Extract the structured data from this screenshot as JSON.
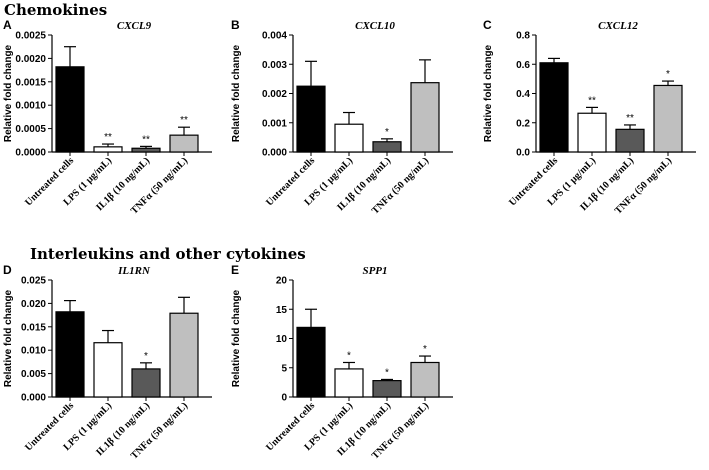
{
  "sections": {
    "chemokines": "Chemokines",
    "interleukins": "Interleukins and other cytokines"
  },
  "colors": {
    "black": "#000000",
    "white": "#ffffff",
    "dark_gray": "#595959",
    "light_gray": "#bfbfbf"
  },
  "chart_data": [
    {
      "type": "bar",
      "panel": "A",
      "title": "CXCL9",
      "ylabel": "Relative fold change",
      "categories": [
        "Untreated cells",
        "LPS (1 μg/mL)",
        "IL1β (10 ng/mL)",
        "TNFα (50 ng/mL)"
      ],
      "values": [
        0.00182,
        0.00011,
        8e-05,
        0.00036
      ],
      "errors": [
        0.00043,
        6e-05,
        4e-05,
        0.00017
      ],
      "significance": [
        "",
        "**",
        "**",
        "**"
      ],
      "fills": [
        "black",
        "white",
        "dark_gray",
        "light_gray"
      ],
      "ylim": [
        0,
        0.0025
      ],
      "yticks": [
        "0.0000",
        "0.0005",
        "0.0010",
        "0.0015",
        "0.0020",
        "0.0025"
      ]
    },
    {
      "type": "bar",
      "panel": "B",
      "title": "CXCL10",
      "ylabel": "Relative fold change",
      "categories": [
        "Untreated cells",
        "LPS (1 μg/mL)",
        "IL1β (10 ng/mL)",
        "TNFα (50 ng/mL)"
      ],
      "values": [
        0.00225,
        0.00095,
        0.00035,
        0.00237
      ],
      "errors": [
        0.00085,
        0.0004,
        0.0001,
        0.00078
      ],
      "significance": [
        "",
        "",
        "*",
        ""
      ],
      "fills": [
        "black",
        "white",
        "dark_gray",
        "light_gray"
      ],
      "ylim": [
        0,
        0.004
      ],
      "yticks": [
        "0.000",
        "0.001",
        "0.002",
        "0.003",
        "0.004"
      ]
    },
    {
      "type": "bar",
      "panel": "C",
      "title": "CXCL12",
      "ylabel": "Relative fold change",
      "categories": [
        "Untreated cells",
        "LPS (1 μg/mL)",
        "IL1β (10 ng/mL)",
        "TNFα (50 ng/mL)"
      ],
      "values": [
        0.61,
        0.265,
        0.155,
        0.455
      ],
      "errors": [
        0.03,
        0.04,
        0.03,
        0.03
      ],
      "significance": [
        "",
        "**",
        "**",
        "*"
      ],
      "fills": [
        "black",
        "white",
        "dark_gray",
        "light_gray"
      ],
      "ylim": [
        0,
        0.8
      ],
      "yticks": [
        "0.0",
        "0.2",
        "0.4",
        "0.6",
        "0.8"
      ]
    },
    {
      "type": "bar",
      "panel": "D",
      "title": "IL1RN",
      "ylabel": "Relative fold change",
      "categories": [
        "Untreated cells",
        "LPS (1 μg/mL)",
        "IL1β (10 ng/mL)",
        "TNFα (50 ng/mL)"
      ],
      "values": [
        0.0182,
        0.0116,
        0.006,
        0.0179
      ],
      "errors": [
        0.0024,
        0.0026,
        0.0013,
        0.0034
      ],
      "significance": [
        "",
        "",
        "*",
        ""
      ],
      "fills": [
        "black",
        "white",
        "dark_gray",
        "light_gray"
      ],
      "ylim": [
        0,
        0.025
      ],
      "yticks": [
        "0.000",
        "0.005",
        "0.010",
        "0.015",
        "0.020",
        "0.025"
      ]
    },
    {
      "type": "bar",
      "panel": "E",
      "title": "SPP1",
      "ylabel": "Relative fold change",
      "categories": [
        "Untreated cells",
        "LPS (1 μg/mL)",
        "IL1β (10 ng/mL)",
        "TNFα (50 ng/mL)"
      ],
      "values": [
        11.9,
        4.8,
        2.8,
        5.9
      ],
      "errors": [
        3.1,
        1.1,
        0.2,
        1.1
      ],
      "significance": [
        "",
        "*",
        "*",
        "*"
      ],
      "fills": [
        "black",
        "white",
        "dark_gray",
        "light_gray"
      ],
      "ylim": [
        0,
        20
      ],
      "yticks": [
        "0",
        "5",
        "10",
        "15",
        "20"
      ]
    }
  ]
}
